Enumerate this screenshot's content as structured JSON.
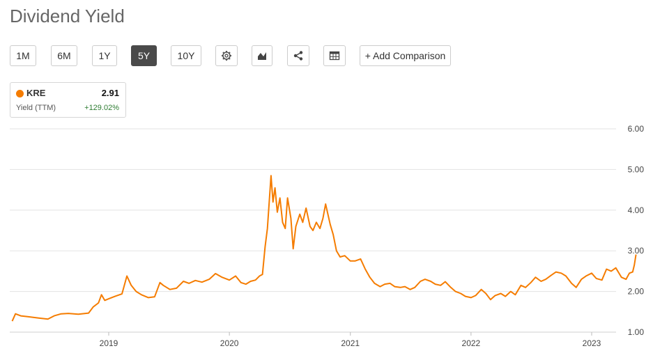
{
  "page": {
    "title": "Dividend Yield"
  },
  "toolbar": {
    "ranges": [
      {
        "label": "1M",
        "active": false
      },
      {
        "label": "6M",
        "active": false
      },
      {
        "label": "1Y",
        "active": false
      },
      {
        "label": "5Y",
        "active": true
      },
      {
        "label": "10Y",
        "active": false
      }
    ],
    "icons": [
      "gear-icon",
      "chart-type-icon",
      "share-icon",
      "table-icon"
    ],
    "add_comparison_label": "+ Add Comparison"
  },
  "legend": {
    "ticker": "KRE",
    "value": "2.91",
    "metric": "Yield (TTM)",
    "change": "+129.02%",
    "series_color": "#f57c00",
    "change_color": "#2e7d32"
  },
  "chart_data": {
    "type": "line",
    "title": "Dividend Yield",
    "xlabel": "",
    "ylabel": "",
    "ylim": [
      1.0,
      6.0
    ],
    "yticks": [
      "6.00",
      "5.00",
      "4.00",
      "3.00",
      "2.00",
      "1.00"
    ],
    "xticks": [
      "2019",
      "2020",
      "2021",
      "2022",
      "2023"
    ],
    "y_axis_side": "right",
    "grid": true,
    "series": [
      {
        "name": "KRE",
        "color": "#f57c00",
        "points": [
          [
            "2018-03-15",
            1.27
          ],
          [
            "2018-03-25",
            1.45
          ],
          [
            "2018-04-10",
            1.4
          ],
          [
            "2018-05-01",
            1.38
          ],
          [
            "2018-06-01",
            1.35
          ],
          [
            "2018-07-01",
            1.32
          ],
          [
            "2018-07-20",
            1.4
          ],
          [
            "2018-08-10",
            1.45
          ],
          [
            "2018-09-01",
            1.46
          ],
          [
            "2018-10-01",
            1.44
          ],
          [
            "2018-11-01",
            1.47
          ],
          [
            "2018-11-15",
            1.62
          ],
          [
            "2018-12-01",
            1.72
          ],
          [
            "2018-12-10",
            1.92
          ],
          [
            "2018-12-20",
            1.78
          ],
          [
            "2019-01-01",
            1.82
          ],
          [
            "2019-01-20",
            1.88
          ],
          [
            "2019-02-10",
            1.94
          ],
          [
            "2019-02-25",
            2.38
          ],
          [
            "2019-03-10",
            2.15
          ],
          [
            "2019-03-25",
            2.0
          ],
          [
            "2019-04-10",
            1.92
          ],
          [
            "2019-05-01",
            1.85
          ],
          [
            "2019-05-20",
            1.87
          ],
          [
            "2019-06-05",
            2.22
          ],
          [
            "2019-06-15",
            2.15
          ],
          [
            "2019-07-05",
            2.05
          ],
          [
            "2019-07-25",
            2.08
          ],
          [
            "2019-08-15",
            2.25
          ],
          [
            "2019-09-01",
            2.2
          ],
          [
            "2019-09-20",
            2.27
          ],
          [
            "2019-10-10",
            2.23
          ],
          [
            "2019-11-01",
            2.3
          ],
          [
            "2019-11-20",
            2.44
          ],
          [
            "2019-12-10",
            2.35
          ],
          [
            "2020-01-01",
            2.28
          ],
          [
            "2020-01-20",
            2.38
          ],
          [
            "2020-02-05",
            2.22
          ],
          [
            "2020-02-20",
            2.18
          ],
          [
            "2020-03-05",
            2.25
          ],
          [
            "2020-03-20",
            2.28
          ],
          [
            "2020-04-01",
            2.38
          ],
          [
            "2020-04-10",
            2.42
          ],
          [
            "2020-04-18",
            3.1
          ],
          [
            "2020-04-25",
            3.55
          ],
          [
            "2020-05-01",
            4.25
          ],
          [
            "2020-05-06",
            4.85
          ],
          [
            "2020-05-12",
            4.2
          ],
          [
            "2020-05-18",
            4.55
          ],
          [
            "2020-05-25",
            3.95
          ],
          [
            "2020-06-02",
            4.3
          ],
          [
            "2020-06-10",
            3.7
          ],
          [
            "2020-06-18",
            3.55
          ],
          [
            "2020-06-25",
            4.3
          ],
          [
            "2020-07-05",
            3.8
          ],
          [
            "2020-07-12",
            3.05
          ],
          [
            "2020-07-20",
            3.6
          ],
          [
            "2020-08-01",
            3.9
          ],
          [
            "2020-08-10",
            3.7
          ],
          [
            "2020-08-20",
            4.05
          ],
          [
            "2020-09-01",
            3.6
          ],
          [
            "2020-09-10",
            3.5
          ],
          [
            "2020-09-20",
            3.7
          ],
          [
            "2020-10-01",
            3.55
          ],
          [
            "2020-10-10",
            3.8
          ],
          [
            "2020-10-18",
            4.15
          ],
          [
            "2020-10-25",
            3.9
          ],
          [
            "2020-11-01",
            3.65
          ],
          [
            "2020-11-10",
            3.4
          ],
          [
            "2020-11-20",
            3.0
          ],
          [
            "2020-12-01",
            2.85
          ],
          [
            "2020-12-15",
            2.88
          ],
          [
            "2021-01-01",
            2.75
          ],
          [
            "2021-01-15",
            2.75
          ],
          [
            "2021-02-01",
            2.8
          ],
          [
            "2021-02-15",
            2.55
          ],
          [
            "2021-03-01",
            2.35
          ],
          [
            "2021-03-15",
            2.2
          ],
          [
            "2021-04-01",
            2.12
          ],
          [
            "2021-04-15",
            2.18
          ],
          [
            "2021-05-01",
            2.2
          ],
          [
            "2021-05-15",
            2.12
          ],
          [
            "2021-06-01",
            2.1
          ],
          [
            "2021-06-15",
            2.12
          ],
          [
            "2021-07-01",
            2.05
          ],
          [
            "2021-07-15",
            2.1
          ],
          [
            "2021-08-01",
            2.25
          ],
          [
            "2021-08-15",
            2.3
          ],
          [
            "2021-09-01",
            2.25
          ],
          [
            "2021-09-15",
            2.18
          ],
          [
            "2021-10-01",
            2.15
          ],
          [
            "2021-10-15",
            2.24
          ],
          [
            "2021-11-01",
            2.1
          ],
          [
            "2021-11-15",
            2.0
          ],
          [
            "2021-12-01",
            1.95
          ],
          [
            "2021-12-15",
            1.88
          ],
          [
            "2022-01-01",
            1.85
          ],
          [
            "2022-01-15",
            1.9
          ],
          [
            "2022-02-01",
            2.05
          ],
          [
            "2022-02-15",
            1.95
          ],
          [
            "2022-03-01",
            1.8
          ],
          [
            "2022-03-15",
            1.9
          ],
          [
            "2022-04-01",
            1.95
          ],
          [
            "2022-04-15",
            1.88
          ],
          [
            "2022-05-01",
            2.0
          ],
          [
            "2022-05-15",
            1.92
          ],
          [
            "2022-06-01",
            2.15
          ],
          [
            "2022-06-15",
            2.1
          ],
          [
            "2022-07-01",
            2.22
          ],
          [
            "2022-07-15",
            2.35
          ],
          [
            "2022-08-01",
            2.25
          ],
          [
            "2022-08-15",
            2.3
          ],
          [
            "2022-09-01",
            2.4
          ],
          [
            "2022-09-15",
            2.48
          ],
          [
            "2022-10-01",
            2.45
          ],
          [
            "2022-10-15",
            2.38
          ],
          [
            "2022-11-01",
            2.2
          ],
          [
            "2022-11-15",
            2.1
          ],
          [
            "2022-12-01",
            2.3
          ],
          [
            "2022-12-15",
            2.38
          ],
          [
            "2023-01-01",
            2.45
          ],
          [
            "2023-01-15",
            2.32
          ],
          [
            "2023-02-01",
            2.28
          ],
          [
            "2023-02-15",
            2.55
          ],
          [
            "2023-03-01",
            2.5
          ],
          [
            "2023-03-15",
            2.58
          ],
          [
            "2023-04-01",
            2.35
          ],
          [
            "2023-04-15",
            2.3
          ],
          [
            "2023-04-25",
            2.45
          ],
          [
            "2023-05-05",
            2.48
          ],
          [
            "2023-05-10",
            2.65
          ],
          [
            "2023-05-15",
            2.91
          ]
        ]
      }
    ]
  }
}
